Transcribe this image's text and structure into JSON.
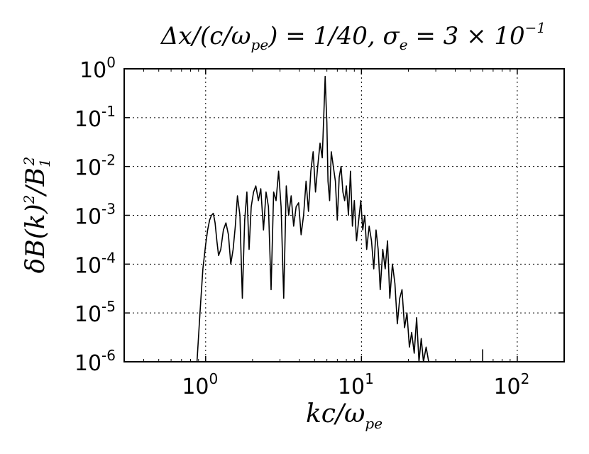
{
  "chart_data": {
    "type": "line",
    "title": "Δx/(c/ω_pe) = 1/40, σ_e = 3 × 10^-1",
    "title_parts": {
      "lhs": "Δx/(c/ω",
      "sub1": "pe",
      "mid": ") = 1/40, σ",
      "sub2": "e",
      "rhs": " = 3 × 10",
      "exp": "−1"
    },
    "xlabel": "kc/ω_pe",
    "xlabel_parts": {
      "main": "kc/ω",
      "sub": "pe"
    },
    "ylabel": "δB(k)^2/B_1^2",
    "ylabel_parts": {
      "a": "δB(k)",
      "sup": "2",
      "b": "/B",
      "sub": "1",
      "sup2": "2"
    },
    "xscale": "log",
    "yscale": "log",
    "xlim": [
      0.3,
      200
    ],
    "ylim": [
      1e-06,
      1
    ],
    "grid": true,
    "x_ticks": [
      {
        "value": 1,
        "base": "10",
        "exp": "0"
      },
      {
        "value": 10,
        "base": "10",
        "exp": "1"
      },
      {
        "value": 100,
        "base": "10",
        "exp": "2"
      }
    ],
    "y_ticks": [
      {
        "value": 1,
        "base": "10",
        "exp": "0"
      },
      {
        "value": 0.1,
        "base": "10",
        "exp": "-1"
      },
      {
        "value": 0.01,
        "base": "10",
        "exp": "-2"
      },
      {
        "value": 0.001,
        "base": "10",
        "exp": "-3"
      },
      {
        "value": 0.0001,
        "base": "10",
        "exp": "-4"
      },
      {
        "value": 1e-05,
        "base": "10",
        "exp": "-5"
      },
      {
        "value": 1e-06,
        "base": "10",
        "exp": "-6"
      }
    ],
    "series": [
      {
        "color": "#000000",
        "x": [
          0.88,
          0.92,
          0.96,
          1.0,
          1.03,
          1.06,
          1.09,
          1.12,
          1.15,
          1.18,
          1.21,
          1.25,
          1.3,
          1.35,
          1.4,
          1.45,
          1.5,
          1.55,
          1.6,
          1.66,
          1.72,
          1.78,
          1.84,
          1.9,
          1.96,
          2.03,
          2.1,
          2.18,
          2.26,
          2.35,
          2.44,
          2.53,
          2.63,
          2.73,
          2.83,
          2.94,
          3.05,
          3.17,
          3.29,
          3.41,
          3.54,
          3.67,
          3.81,
          3.95,
          4.1,
          4.25,
          4.41,
          4.57,
          4.73,
          4.9,
          5.07,
          5.24,
          5.42,
          5.6,
          5.75,
          5.85,
          5.93,
          6.0,
          6.1,
          6.25,
          6.4,
          6.6,
          6.8,
          7.0,
          7.2,
          7.4,
          7.6,
          7.8,
          8.0,
          8.25,
          8.5,
          8.75,
          9.0,
          9.3,
          9.6,
          9.9,
          10.2,
          10.5,
          10.8,
          11.2,
          11.6,
          12.0,
          12.4,
          12.8,
          13.2,
          13.7,
          14.2,
          14.7,
          15.2,
          15.8,
          16.4,
          17.0,
          17.6,
          18.2,
          18.9,
          19.6,
          20.3,
          21.0,
          21.8,
          22.6,
          23.4,
          24.2,
          25.0,
          26.0,
          27.0,
          28.0
        ],
        "y": [
          1e-06,
          1e-05,
          8e-05,
          0.00025,
          0.0005,
          0.0008,
          0.001,
          0.0011,
          0.0007,
          0.0003,
          0.00015,
          0.0002,
          0.0005,
          0.0007,
          0.0004,
          0.0001,
          0.0002,
          0.0006,
          0.0025,
          0.001,
          2e-05,
          0.0008,
          0.003,
          0.0002,
          0.0015,
          0.003,
          0.004,
          0.002,
          0.0035,
          0.0005,
          0.003,
          0.0015,
          3e-05,
          0.003,
          0.002,
          0.008,
          0.0015,
          2e-05,
          0.004,
          0.001,
          0.0025,
          0.0006,
          0.0015,
          0.0018,
          0.0004,
          0.001,
          0.005,
          0.0012,
          0.008,
          0.02,
          0.003,
          0.01,
          0.03,
          0.015,
          0.15,
          0.7,
          0.2,
          0.08,
          0.005,
          0.002,
          0.02,
          0.01,
          0.005,
          0.0008,
          0.006,
          0.01,
          0.003,
          0.002,
          0.004,
          0.001,
          0.008,
          0.0006,
          0.002,
          0.0003,
          0.0008,
          0.002,
          0.0005,
          0.001,
          0.0002,
          0.0006,
          0.0003,
          8e-05,
          0.0005,
          0.0002,
          3e-05,
          0.0002,
          8e-05,
          0.0003,
          2e-05,
          0.0001,
          4e-05,
          6e-06,
          2e-05,
          3e-05,
          5e-06,
          1e-05,
          2e-06,
          4e-06,
          1.5e-06,
          8e-06,
          1e-06,
          3e-06,
          1e-06,
          2e-06,
          1e-06,
          1e-06
        ]
      }
    ],
    "spike": {
      "x": 60,
      "y": 1.8e-06
    }
  }
}
